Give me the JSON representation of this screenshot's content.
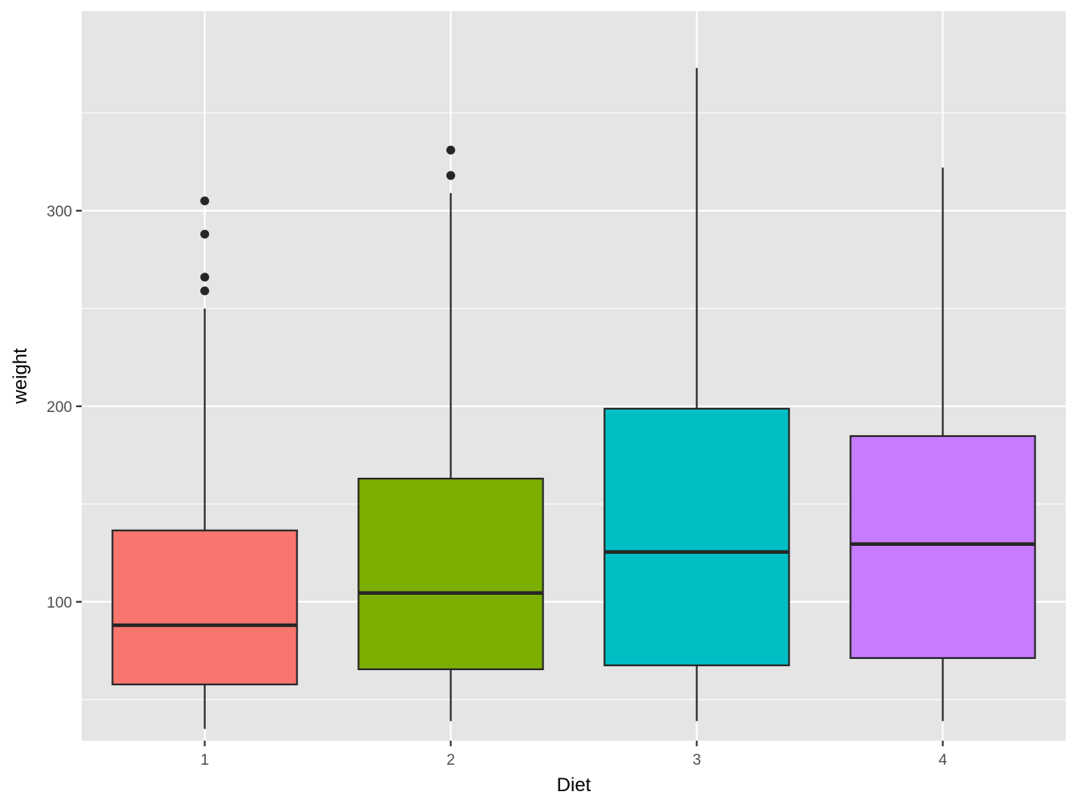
{
  "chart_data": {
    "type": "boxplot",
    "title": "",
    "xlabel": "Diet",
    "ylabel": "weight",
    "ylim": [
      29,
      402
    ],
    "y_major_ticks": [
      100,
      200,
      300
    ],
    "y_minor_ticks": [
      50,
      150,
      250,
      350
    ],
    "categories": [
      "1",
      "2",
      "3",
      "4"
    ],
    "grid": true,
    "legend": "none",
    "background": "#e5e5e5",
    "series": [
      {
        "category": "1",
        "fill": "#f8766d",
        "min": 35,
        "q1": 57.75,
        "median": 88,
        "q3": 136.5,
        "max": 250,
        "outliers": [
          259,
          266,
          288,
          305
        ]
      },
      {
        "category": "2",
        "fill": "#7cae00",
        "min": 39,
        "q1": 65.5,
        "median": 104.5,
        "q3": 163,
        "max": 309,
        "outliers": [
          318,
          331
        ]
      },
      {
        "category": "3",
        "fill": "#00bfc4",
        "min": 39,
        "q1": 67.5,
        "median": 125.5,
        "q3": 198.75,
        "max": 373,
        "outliers": []
      },
      {
        "category": "4",
        "fill": "#c77cff",
        "min": 39,
        "q1": 71.25,
        "median": 129.5,
        "q3": 184.75,
        "max": 322,
        "outliers": []
      }
    ]
  }
}
